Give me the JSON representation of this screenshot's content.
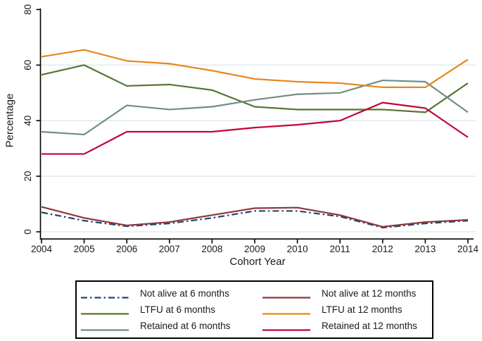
{
  "style": {
    "grid_color": "#dfebee",
    "axis_color": "#000000",
    "text_color": "#1a1a1a",
    "legend_border_color": "#000000",
    "background": "#ffffff"
  },
  "chart_data": {
    "type": "line",
    "title": "",
    "xlabel": "Cohort Year",
    "ylabel": "Percentage",
    "x": [
      2004,
      2005,
      2006,
      2007,
      2008,
      2009,
      2010,
      2011,
      2012,
      2013,
      2014
    ],
    "ylim": [
      0,
      80
    ],
    "yticks": [
      0,
      20,
      40,
      60,
      80
    ],
    "grid_ticks": [
      0,
      20,
      40,
      60
    ],
    "grid": true,
    "legend_position": "bottom",
    "series": [
      {
        "name": "Not alive at 6 months",
        "color": "#1a476f",
        "dash_pattern": "9 4 2.5 4",
        "values": [
          7,
          4,
          2,
          3,
          5,
          7.5,
          7.5,
          5.5,
          1.5,
          3,
          4
        ]
      },
      {
        "name": "LTFU at 6 months",
        "color": "#55752f",
        "dash_pattern": null,
        "values": [
          56.5,
          60,
          52.5,
          53,
          51,
          45,
          44,
          44,
          44,
          43,
          53.5
        ]
      },
      {
        "name": "Retained at 6 months",
        "color": "#6e8e84",
        "dash_pattern": null,
        "values": [
          36,
          35,
          45.5,
          44,
          45,
          47.5,
          49.5,
          50,
          54.5,
          54,
          43
        ]
      },
      {
        "name": "Not alive at 12 months",
        "color": "#90353b",
        "dash_pattern": null,
        "values": [
          9,
          5,
          2.3,
          3.5,
          6,
          8.5,
          8.7,
          6,
          1.8,
          3.5,
          4.3
        ]
      },
      {
        "name": "LTFU at 12 months",
        "color": "#e8861d",
        "dash_pattern": null,
        "values": [
          63,
          65.5,
          61.5,
          60.5,
          58,
          55,
          54,
          53.5,
          52,
          52,
          62
        ]
      },
      {
        "name": "Retained at 12 months",
        "color": "#c10534",
        "dash_pattern": null,
        "values": [
          28,
          28,
          36,
          36,
          36,
          37.5,
          38.5,
          40,
          46.5,
          44.5,
          34
        ]
      }
    ]
  },
  "legend": {
    "columns": [
      {
        "items": [
          {
            "label": "Not alive at 6 months",
            "series": 0
          },
          {
            "label": "LTFU at 6 months",
            "series": 1
          },
          {
            "label": "Retained at 6 months",
            "series": 2
          }
        ]
      },
      {
        "items": [
          {
            "label": "Not alive at 12 months",
            "series": 3
          },
          {
            "label": "LTFU at 12 months",
            "series": 4
          },
          {
            "label": "Retained at 12 months",
            "series": 5
          }
        ]
      }
    ]
  }
}
